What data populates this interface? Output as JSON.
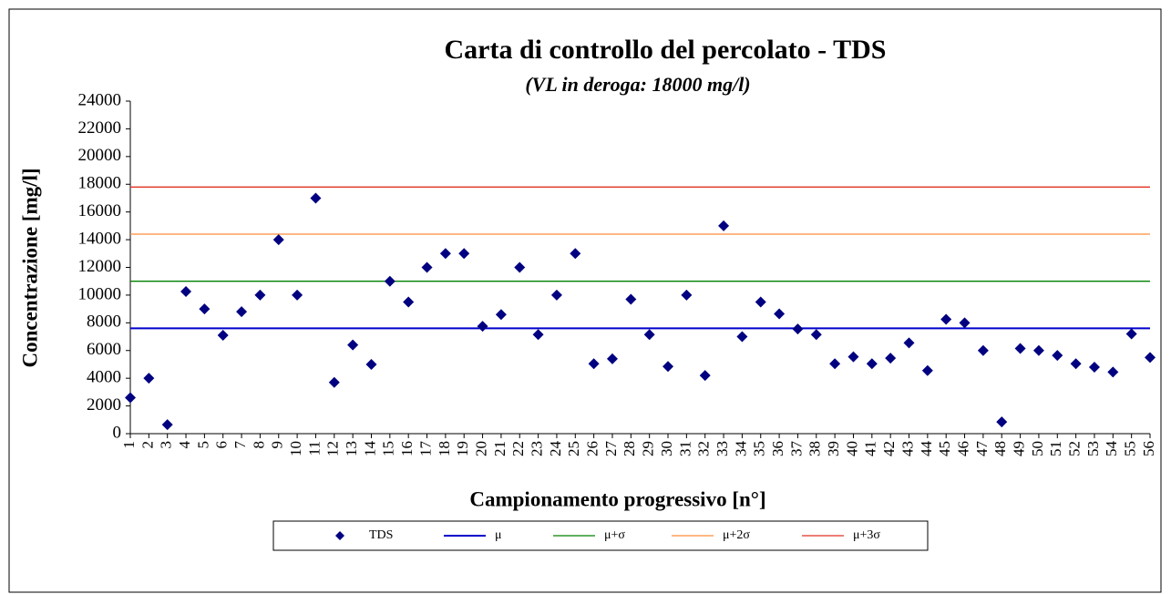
{
  "chart_data": {
    "type": "scatter",
    "title": "Carta di controllo del percolato - TDS",
    "subtitle": "(VL in deroga: 18000 mg/l)",
    "y_label": "Concentrazione  [mg/l]",
    "x_label": "Campionamento  progressivo [n°]",
    "categories": [
      "1",
      "2",
      "3",
      "4",
      "5",
      "6",
      "7",
      "8",
      "9",
      "10",
      "11",
      "12",
      "13",
      "14",
      "15",
      "16",
      "17",
      "18",
      "19",
      "20",
      "21",
      "22",
      "23",
      "24",
      "25",
      "26",
      "27",
      "28",
      "29",
      "30",
      "31",
      "32",
      "33",
      "34",
      "35",
      "36",
      "37",
      "38",
      "39",
      "40",
      "41",
      "42",
      "43",
      "44",
      "45",
      "46",
      "47",
      "48",
      "49",
      "50",
      "51",
      "52",
      "53",
      "54",
      "55",
      "56"
    ],
    "series": [
      {
        "name": "TDS",
        "color": "#000080",
        "values": [
          2600,
          4000,
          650,
          10260,
          9000,
          7100,
          8800,
          10000,
          14000,
          10000,
          17000,
          3700,
          6400,
          5000,
          11000,
          9500,
          12000,
          13000,
          13000,
          7750,
          8600,
          12000,
          7150,
          10000,
          13000,
          5050,
          5400,
          9700,
          7150,
          4850,
          10000,
          4200,
          15000,
          7000,
          9500,
          8650,
          7550,
          7150,
          5050,
          5550,
          5050,
          5450,
          6550,
          4550,
          8250,
          8000,
          6000,
          850,
          6150,
          6000,
          5650,
          5050,
          4800,
          4450,
          7200,
          5500
        ]
      }
    ],
    "lines": [
      {
        "name": "μ",
        "color": "#0000cc",
        "value": 7600
      },
      {
        "name": "μ+σ",
        "color": "#008000",
        "value": 11000
      },
      {
        "name": "μ+2σ",
        "color": "#ff8c3a",
        "value": 14400
      },
      {
        "name": "μ+3σ",
        "color": "#e03020",
        "value": 17800
      }
    ],
    "ylim": [
      0,
      24000
    ],
    "yticks": [
      0,
      2000,
      4000,
      6000,
      8000,
      10000,
      12000,
      14000,
      16000,
      18000,
      20000,
      22000,
      24000
    ],
    "grid": false
  }
}
